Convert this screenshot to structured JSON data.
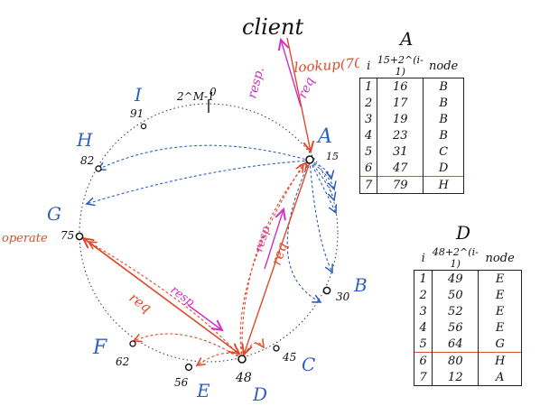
{
  "title": "client",
  "request_label": "lookup(70)",
  "req_label": "req",
  "resp_label": "resp.",
  "operate_label": "operate",
  "ring": {
    "top_label": "2^M-1",
    "top_zero": "0",
    "nodes": [
      {
        "letter": "A",
        "id": "15"
      },
      {
        "letter": "B",
        "id": "30"
      },
      {
        "letter": "C",
        "id": "45"
      },
      {
        "letter": "D",
        "id": "48"
      },
      {
        "letter": "E",
        "id": "56"
      },
      {
        "letter": "F",
        "id": "62"
      },
      {
        "letter": "G",
        "id": "75"
      },
      {
        "letter": "H",
        "id": "82"
      },
      {
        "letter": "I",
        "id": "91"
      }
    ]
  },
  "arrows": {
    "d_req": "req",
    "d_resp": "resp",
    "g_req": "req",
    "g_resp": "resp"
  },
  "table_A": {
    "title": "A",
    "headers": [
      "i",
      "15+2^(i-1)",
      "node"
    ],
    "rows": [
      [
        "1",
        "16",
        "B"
      ],
      [
        "2",
        "17",
        "B"
      ],
      [
        "3",
        "19",
        "B"
      ],
      [
        "4",
        "23",
        "B"
      ],
      [
        "5",
        "31",
        "C"
      ],
      [
        "6",
        "47",
        "D"
      ],
      [
        "7",
        "79",
        "H"
      ]
    ]
  },
  "table_D": {
    "title": "D",
    "headers": [
      "i",
      "48+2^(i-1)",
      "node"
    ],
    "rows": [
      [
        "1",
        "49",
        "E"
      ],
      [
        "2",
        "50",
        "E"
      ],
      [
        "3",
        "52",
        "E"
      ],
      [
        "4",
        "56",
        "E"
      ],
      [
        "5",
        "64",
        "G"
      ],
      [
        "6",
        "80",
        "H"
      ],
      [
        "7",
        "12",
        "A"
      ]
    ]
  },
  "colors": {
    "red": "#e04a2a",
    "blue": "#2f5fc0",
    "magenta": "#d030c8",
    "ink": "#111111"
  }
}
